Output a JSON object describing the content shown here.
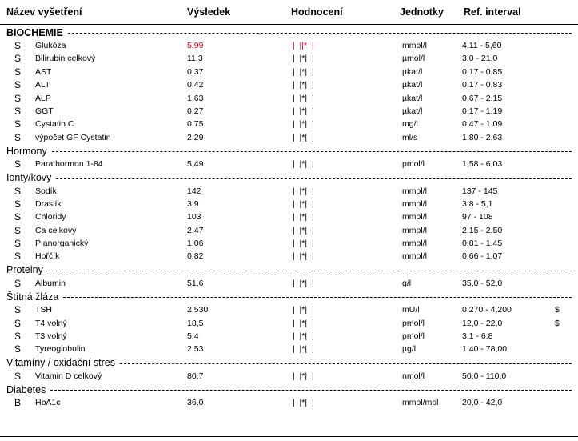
{
  "header": {
    "columns": [
      "Název vyšetření",
      "Výsledek",
      "Hodnocení",
      "Jednotky",
      "Ref. interval"
    ]
  },
  "sections": [
    {
      "title": "BIOCHEMIE",
      "rows": [
        {
          "sample": "S",
          "name": "Glukóza",
          "result": "5,99",
          "rating": "|  ||*  |",
          "unit": "mmol/l",
          "ref": "4,11 - 5,60",
          "abnormal": true
        },
        {
          "sample": "S",
          "name": "Bilirubin celkový",
          "result": "11,3",
          "rating": "|  |*|  |",
          "unit": "µmol/l",
          "ref": "3,0 - 21,0"
        },
        {
          "sample": "S",
          "name": "AST",
          "result": "0,37",
          "rating": "|  |*|  |",
          "unit": "µkat/l",
          "ref": "0,17 - 0,85"
        },
        {
          "sample": "S",
          "name": "ALT",
          "result": "0,42",
          "rating": "|  |*|  |",
          "unit": "µkat/l",
          "ref": "0,17 - 0,83"
        },
        {
          "sample": "S",
          "name": "ALP",
          "result": "1,63",
          "rating": "|  |*|  |",
          "unit": "µkat/l",
          "ref": "0,67 - 2,15"
        },
        {
          "sample": "S",
          "name": "GGT",
          "result": "0,27",
          "rating": "|  |*|  |",
          "unit": "µkat/l",
          "ref": "0,17 - 1,19"
        },
        {
          "sample": "S",
          "name": "Cystatin C",
          "result": "0,75",
          "rating": "|  |*|  |",
          "unit": "mg/l",
          "ref": "0,47 - 1,09"
        },
        {
          "sample": "S",
          "name": "výpočet GF Cystatin",
          "result": "2,29",
          "rating": "|  |*|  |",
          "unit": "ml/s",
          "ref": "1,80 - 2,63"
        }
      ]
    },
    {
      "title": "Hormony",
      "rows": [
        {
          "sample": "S",
          "name": "Parathormon 1-84",
          "result": "5,49",
          "rating": "|  |*|  |",
          "unit": "pmol/l",
          "ref": "1,58 - 6,03"
        }
      ]
    },
    {
      "title": "Ionty/kovy",
      "rows": [
        {
          "sample": "S",
          "name": "Sodík",
          "result": "142",
          "rating": "|  |*|  |",
          "unit": "mmol/l",
          "ref": "137 - 145"
        },
        {
          "sample": "S",
          "name": "Draslík",
          "result": "3,9",
          "rating": "|  |*|  |",
          "unit": "mmol/l",
          "ref": "3,8 - 5,1"
        },
        {
          "sample": "S",
          "name": "Chloridy",
          "result": "103",
          "rating": "|  |*|  |",
          "unit": "mmol/l",
          "ref": "97 - 108"
        },
        {
          "sample": "S",
          "name": "Ca celkový",
          "result": "2,47",
          "rating": "|  |*|  |",
          "unit": "mmol/l",
          "ref": "2,15 - 2,50"
        },
        {
          "sample": "S",
          "name": "P anorganický",
          "result": "1,06",
          "rating": "|  |*|  |",
          "unit": "mmol/l",
          "ref": "0,81 - 1,45"
        },
        {
          "sample": "S",
          "name": "Hořčík",
          "result": "0,82",
          "rating": "|  |*|  |",
          "unit": "mmol/l",
          "ref": "0,66 - 1,07"
        }
      ]
    },
    {
      "title": "Proteiny",
      "rows": [
        {
          "sample": "S",
          "name": "Albumin",
          "result": "51,6",
          "rating": "|  |*|  |",
          "unit": "g/l",
          "ref": "35,0 - 52,0"
        }
      ]
    },
    {
      "title": "Štítná žláza",
      "rows": [
        {
          "sample": "S",
          "name": "TSH",
          "result": "2,530",
          "rating": "|  |*|  |",
          "unit": "mU/l",
          "ref": "0,270 - 4,200",
          "note": "$"
        },
        {
          "sample": "S",
          "name": "T4 volný",
          "result": "18,5",
          "rating": "|  |*|  |",
          "unit": "pmol/l",
          "ref": "12,0 - 22,0",
          "note": "$"
        },
        {
          "sample": "S",
          "name": "T3 volný",
          "result": "5,4",
          "rating": "|  |*|  |",
          "unit": "pmol/l",
          "ref": "3,1 - 6,8"
        },
        {
          "sample": "S",
          "name": "Tyreoglobulin",
          "result": "2,53",
          "rating": "|  |*|  |",
          "unit": "µg/l",
          "ref": "1,40 - 78,00"
        }
      ]
    },
    {
      "title": "Vitamíny / oxidační stres",
      "rows": [
        {
          "sample": "S",
          "name": "Vitamin D celkový",
          "result": "80,7",
          "rating": "|  |*|  |",
          "unit": "nmol/l",
          "ref": "50,0 - 110,0"
        }
      ]
    },
    {
      "title": "Diabetes",
      "rows": [
        {
          "sample": "B",
          "name": "HbA1c",
          "result": "36,0",
          "rating": "|  |*|  |",
          "unit": "mmol/mol",
          "ref": "20,0 - 42,0"
        }
      ]
    }
  ]
}
